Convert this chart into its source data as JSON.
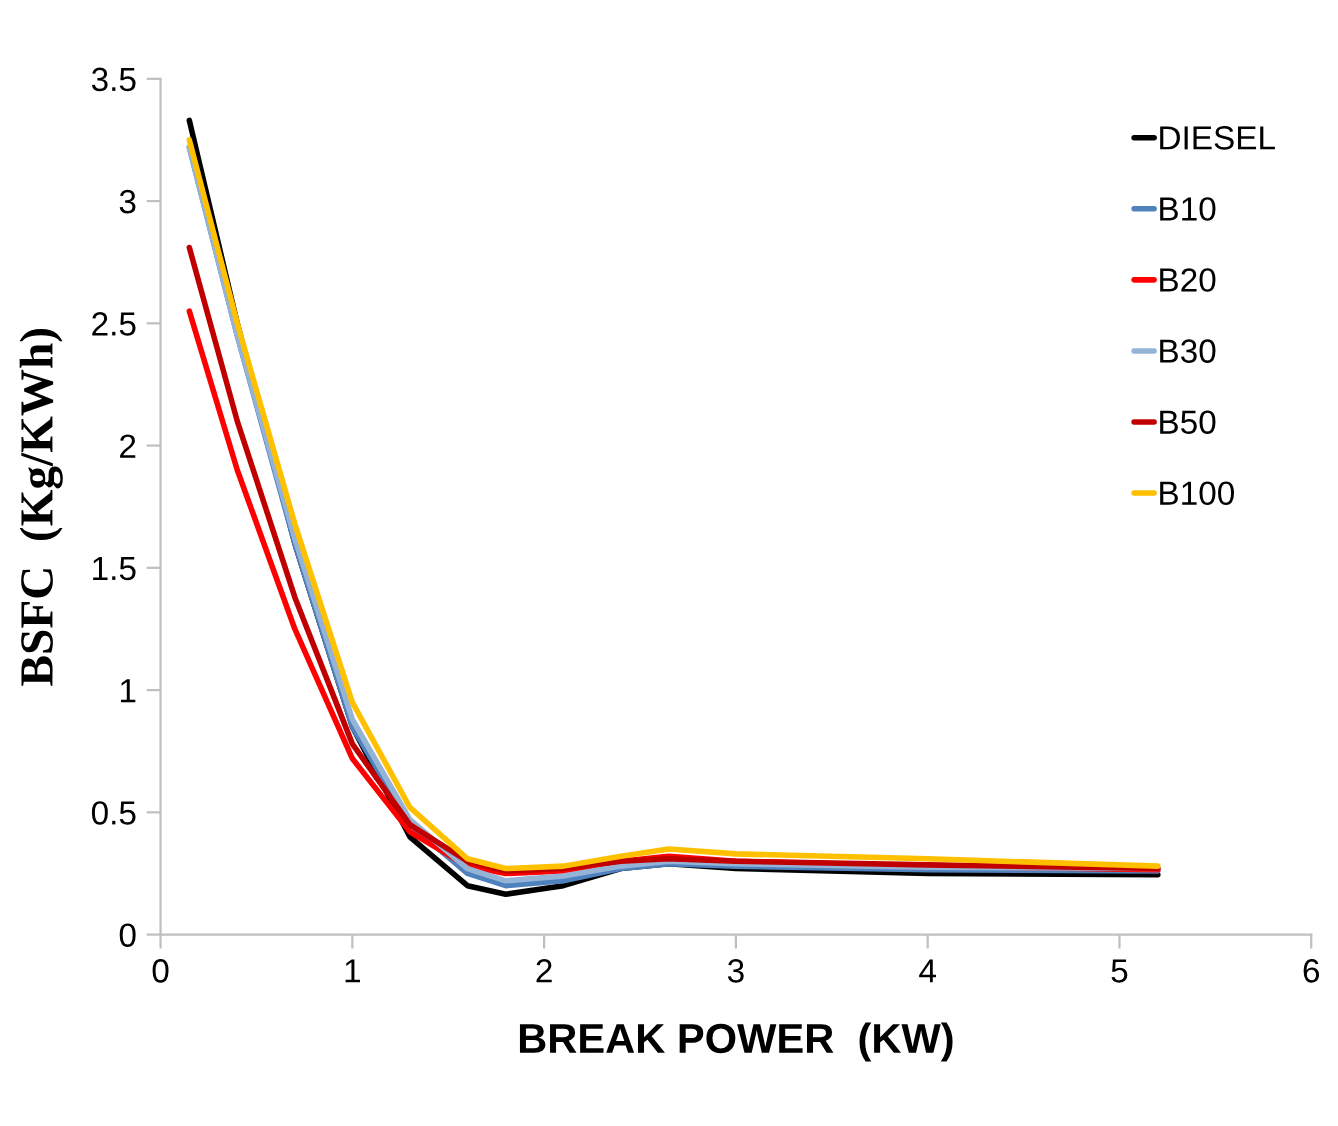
{
  "chart_data": {
    "type": "line",
    "xlabel": "BREAK POWER  (KW)",
    "ylabel": "BSFC  (Kg/KWh)",
    "x": [
      0.15,
      0.4,
      0.7,
      1.0,
      1.3,
      1.6,
      1.8,
      2.1,
      2.4,
      2.65,
      3.0,
      4.0,
      5.2
    ],
    "xlim": [
      0,
      6
    ],
    "xticks": [
      0,
      1,
      2,
      3,
      4,
      5,
      6
    ],
    "ylim": [
      0,
      3.5
    ],
    "yticks": [
      0,
      0.5,
      1,
      1.5,
      2,
      2.5,
      3,
      3.5
    ],
    "grid": false,
    "legend": "right",
    "marker": "none",
    "line_style": "solid",
    "series": [
      {
        "name": "DIESEL",
        "color": "#000000",
        "values": [
          3.33,
          2.5,
          1.6,
          0.85,
          0.4,
          0.2,
          0.165,
          0.2,
          0.27,
          0.29,
          0.27,
          0.25,
          0.245
        ]
      },
      {
        "name": "B10",
        "color": "#4f81bd",
        "values": [
          3.22,
          2.45,
          1.6,
          0.85,
          0.45,
          0.25,
          0.2,
          0.22,
          0.27,
          0.29,
          0.28,
          0.265,
          0.26
        ]
      },
      {
        "name": "B20",
        "color": "#ff0000",
        "values": [
          2.55,
          1.9,
          1.25,
          0.72,
          0.42,
          0.28,
          0.25,
          0.26,
          0.3,
          0.32,
          0.3,
          0.28,
          0.265
        ]
      },
      {
        "name": "B30",
        "color": "#95b3d7",
        "values": [
          3.22,
          2.45,
          1.62,
          0.88,
          0.47,
          0.27,
          0.22,
          0.24,
          0.28,
          0.3,
          0.29,
          0.275,
          0.27
        ]
      },
      {
        "name": "B50",
        "color": "#c00000",
        "values": [
          2.81,
          2.1,
          1.38,
          0.78,
          0.45,
          0.3,
          0.26,
          0.27,
          0.3,
          0.31,
          0.3,
          0.285,
          0.27
        ]
      },
      {
        "name": "B100",
        "color": "#ffc000",
        "values": [
          3.25,
          2.5,
          1.68,
          0.95,
          0.52,
          0.31,
          0.27,
          0.28,
          0.32,
          0.35,
          0.33,
          0.31,
          0.28
        ]
      }
    ]
  }
}
